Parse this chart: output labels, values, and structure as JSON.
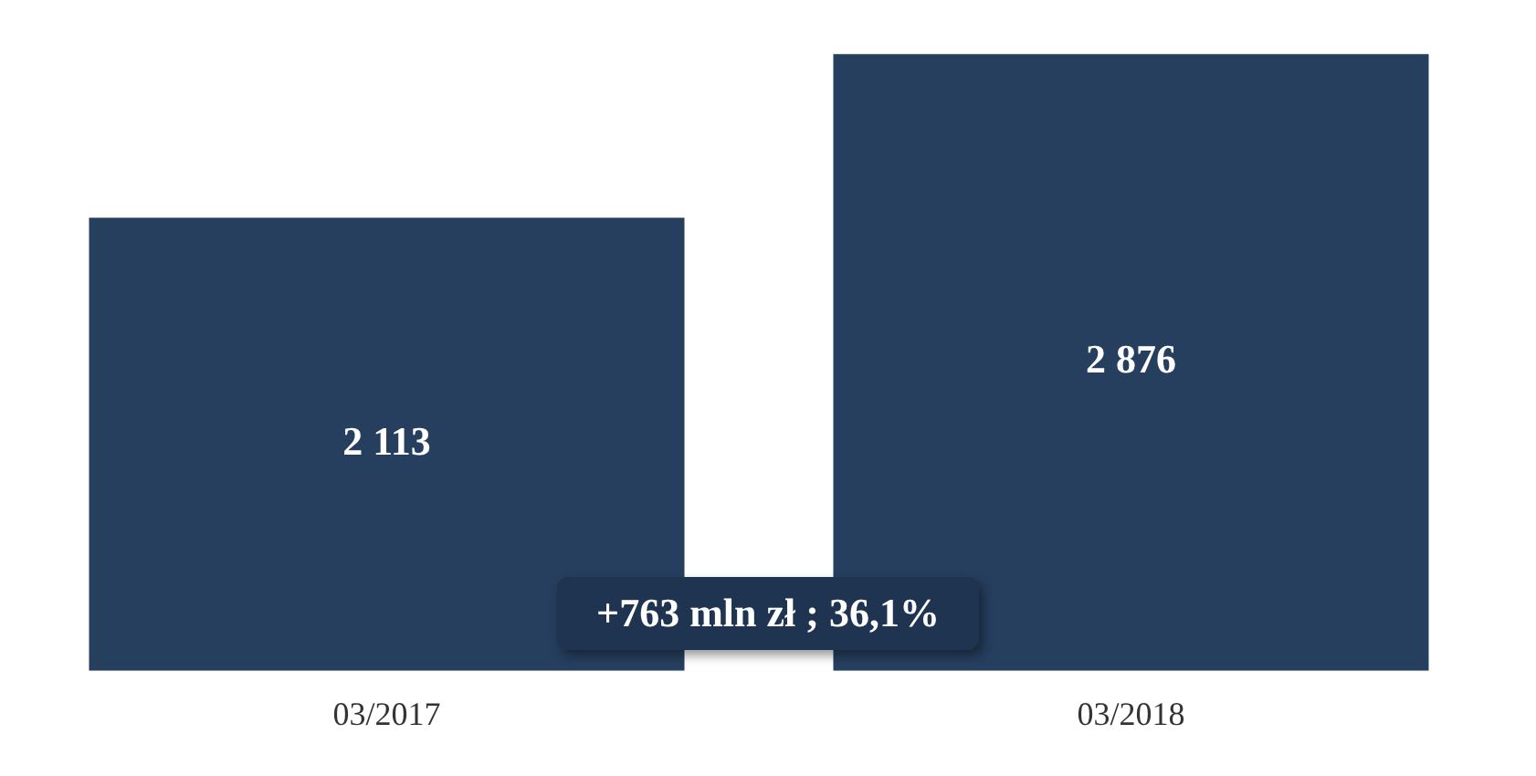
{
  "chart_data": {
    "type": "bar",
    "categories": [
      "03/2017",
      "03/2018"
    ],
    "values": [
      2113,
      2876
    ],
    "color": "#263f5f",
    "value_labels": [
      "2 113",
      "2 876"
    ],
    "annotations": [
      "+763 mln zł ; 36,1%"
    ],
    "grid": false,
    "legend": false
  }
}
